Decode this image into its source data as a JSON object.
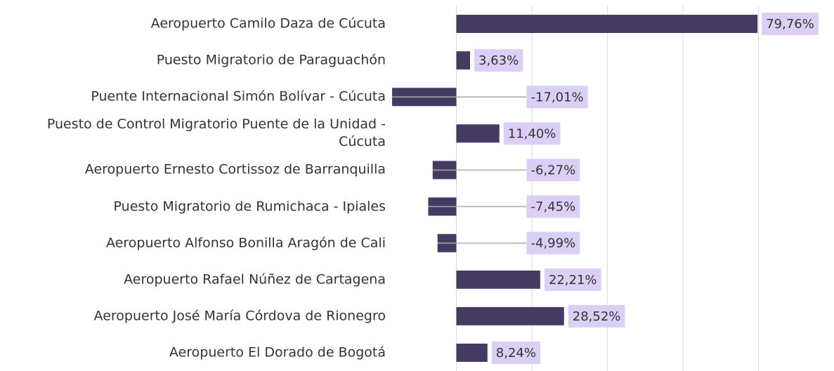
{
  "chart_data": {
    "type": "bar",
    "orientation": "horizontal",
    "categories": [
      "Aeropuerto Camilo Daza de Cúcuta",
      "Puesto Migratorio de Paraguachón",
      "Puente Internacional Simón Bolívar - Cúcuta",
      "Puesto de Control Migratorio Puente de la Unidad - Cúcuta",
      "Aeropuerto Ernesto Cortissoz de Barranquilla",
      "Puesto Migratorio de Rumichaca - Ipiales",
      "Aeropuerto Alfonso Bonilla Aragón de Cali",
      "Aeropuerto Rafael Núñez de Cartagena",
      "Aeropuerto José María Córdova de Rionegro",
      "Aeropuerto El Dorado de Bogotá"
    ],
    "values": [
      79.76,
      3.63,
      -17.01,
      11.4,
      -6.27,
      -7.45,
      -4.99,
      22.21,
      28.52,
      8.24
    ],
    "value_labels": [
      "79,76%",
      "3,63%",
      "-17,01%",
      "11,40%",
      "-6,27%",
      "-7,45%",
      "-4,99%",
      "22,21%",
      "28,52%",
      "8,24%"
    ],
    "color": "#453a62",
    "label_background": "#dccff5",
    "xlim": [
      -20,
      100
    ],
    "xticks": [
      0,
      20,
      40,
      60,
      80
    ],
    "grid": true
  }
}
